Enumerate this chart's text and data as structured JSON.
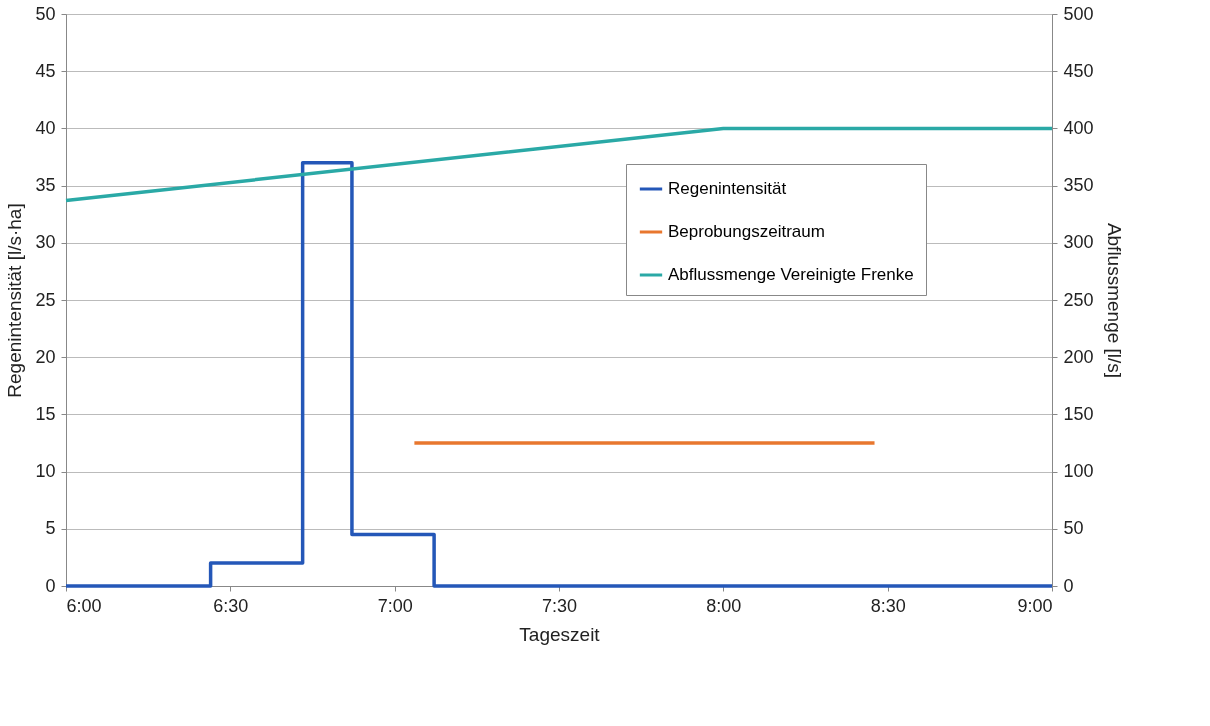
{
  "chart_data": {
    "type": "line",
    "xlabel": "Tageszeit",
    "ylabel": "Regenintensität [l/s·ha]",
    "y2label": "Abflussmenge [l/s]",
    "xlim": [
      6,
      9
    ],
    "xticks": [
      {
        "value": 6,
        "label": "6:00"
      },
      {
        "value": 6.5,
        "label": "6:30"
      },
      {
        "value": 7,
        "label": "7:00"
      },
      {
        "value": 7.5,
        "label": "7:30"
      },
      {
        "value": 8,
        "label": "8:00"
      },
      {
        "value": 8.5,
        "label": "8:30"
      },
      {
        "value": 9,
        "label": "9:00"
      }
    ],
    "ylim": [
      0,
      50
    ],
    "yticks": [
      0,
      5,
      10,
      15,
      20,
      25,
      30,
      35,
      40,
      45,
      50
    ],
    "y2lim": [
      0,
      500
    ],
    "y2ticks": [
      0,
      50,
      100,
      150,
      200,
      250,
      300,
      350,
      400,
      450,
      500
    ],
    "grid": "y",
    "legend": "right",
    "marker": "none",
    "line_style": "solid",
    "series": [
      {
        "name": "Regenintensität",
        "type": "step",
        "color": "#2457b8",
        "x": [
          6,
          6.44,
          6.72,
          6.87,
          7.12,
          9
        ],
        "values": [
          0,
          2,
          37,
          4.5,
          0,
          0
        ]
      },
      {
        "name": "Beprobungszeitraum",
        "type": "line",
        "color": "#e8772e",
        "x": [
          7.06,
          8.46
        ],
        "values": [
          12.5,
          12.5
        ]
      },
      {
        "name": "Abflussmenge Vereinigte Frenke",
        "type": "line",
        "axis": "y2",
        "color": "#2aa9a6",
        "x": [
          6,
          8,
          9
        ],
        "values": [
          337,
          400,
          400
        ]
      }
    ]
  }
}
